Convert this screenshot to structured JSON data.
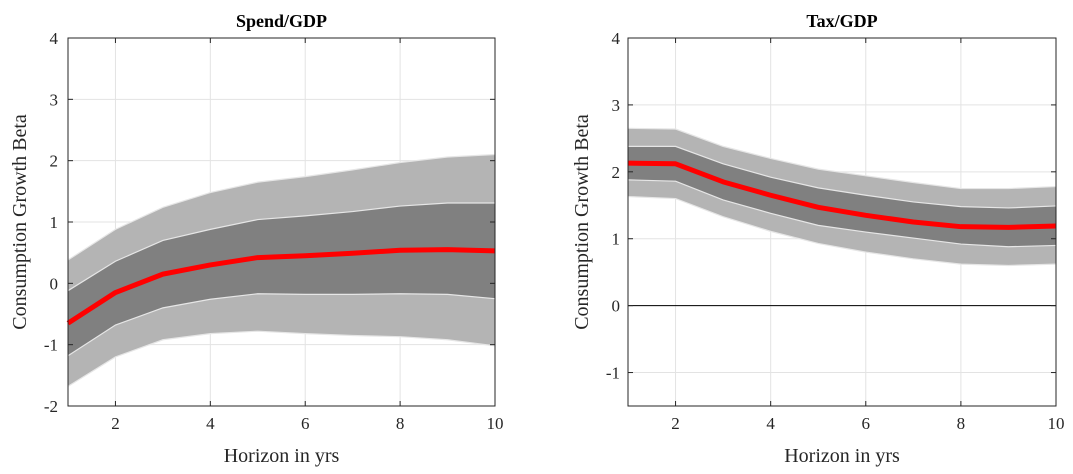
{
  "chart_data": [
    {
      "type": "line",
      "title": "Spend/GDP",
      "xlabel": "Horizon in yrs",
      "ylabel": "Consumption Growth Beta",
      "xlim": [
        1,
        10
      ],
      "ylim": [
        -2,
        4
      ],
      "xticks": [
        2,
        4,
        6,
        8,
        10
      ],
      "yticks": [
        -2,
        -1,
        0,
        1,
        2,
        3,
        4
      ],
      "grid": true,
      "zero_line": false,
      "x": [
        1,
        2,
        3,
        4,
        5,
        6,
        7,
        8,
        9,
        10
      ],
      "series": [
        {
          "values": [
            -0.65,
            -0.15,
            0.15,
            0.3,
            0.42,
            0.45,
            0.49,
            0.54,
            0.55,
            0.53
          ]
        }
      ],
      "bands": [
        {
          "lower": [
            -1.18,
            -0.68,
            -0.4,
            -0.26,
            -0.17,
            -0.18,
            -0.18,
            -0.17,
            -0.18,
            -0.25
          ],
          "upper": [
            -0.12,
            0.36,
            0.7,
            0.88,
            1.04,
            1.1,
            1.17,
            1.26,
            1.31,
            1.31
          ]
        },
        {
          "lower": [
            -1.68,
            -1.2,
            -0.92,
            -0.82,
            -0.78,
            -0.82,
            -0.85,
            -0.87,
            -0.92,
            -1.02
          ],
          "upper": [
            0.38,
            0.88,
            1.24,
            1.48,
            1.65,
            1.74,
            1.85,
            1.97,
            2.06,
            2.1
          ]
        }
      ],
      "colors": {
        "line": "#ff0000",
        "inner_band": "#808080",
        "outer_band": "#b4b4b4",
        "band_edge": "#e6e6e6"
      }
    },
    {
      "type": "line",
      "title": "Tax/GDP",
      "xlabel": "Horizon in yrs",
      "ylabel": "Consumption Growth Beta",
      "xlim": [
        1,
        10
      ],
      "ylim": [
        -1.5,
        4
      ],
      "xticks": [
        2,
        4,
        6,
        8,
        10
      ],
      "yticks": [
        -1,
        0,
        1,
        2,
        3,
        4
      ],
      "grid": true,
      "zero_line": true,
      "x": [
        1,
        2,
        3,
        4,
        5,
        6,
        7,
        8,
        9,
        10
      ],
      "series": [
        {
          "values": [
            2.13,
            2.12,
            1.85,
            1.65,
            1.47,
            1.35,
            1.25,
            1.18,
            1.17,
            1.19
          ]
        }
      ],
      "bands": [
        {
          "lower": [
            1.88,
            1.86,
            1.58,
            1.38,
            1.2,
            1.1,
            1.01,
            0.92,
            0.88,
            0.9
          ],
          "upper": [
            2.38,
            2.38,
            2.12,
            1.92,
            1.76,
            1.65,
            1.55,
            1.48,
            1.46,
            1.49
          ]
        },
        {
          "lower": [
            1.63,
            1.6,
            1.33,
            1.11,
            0.93,
            0.8,
            0.7,
            0.62,
            0.6,
            0.62
          ],
          "upper": [
            2.65,
            2.64,
            2.38,
            2.2,
            2.04,
            1.94,
            1.84,
            1.75,
            1.75,
            1.78
          ]
        }
      ],
      "colors": {
        "line": "#ff0000",
        "inner_band": "#808080",
        "outer_band": "#b4b4b4",
        "band_edge": "#e6e6e6"
      }
    }
  ]
}
